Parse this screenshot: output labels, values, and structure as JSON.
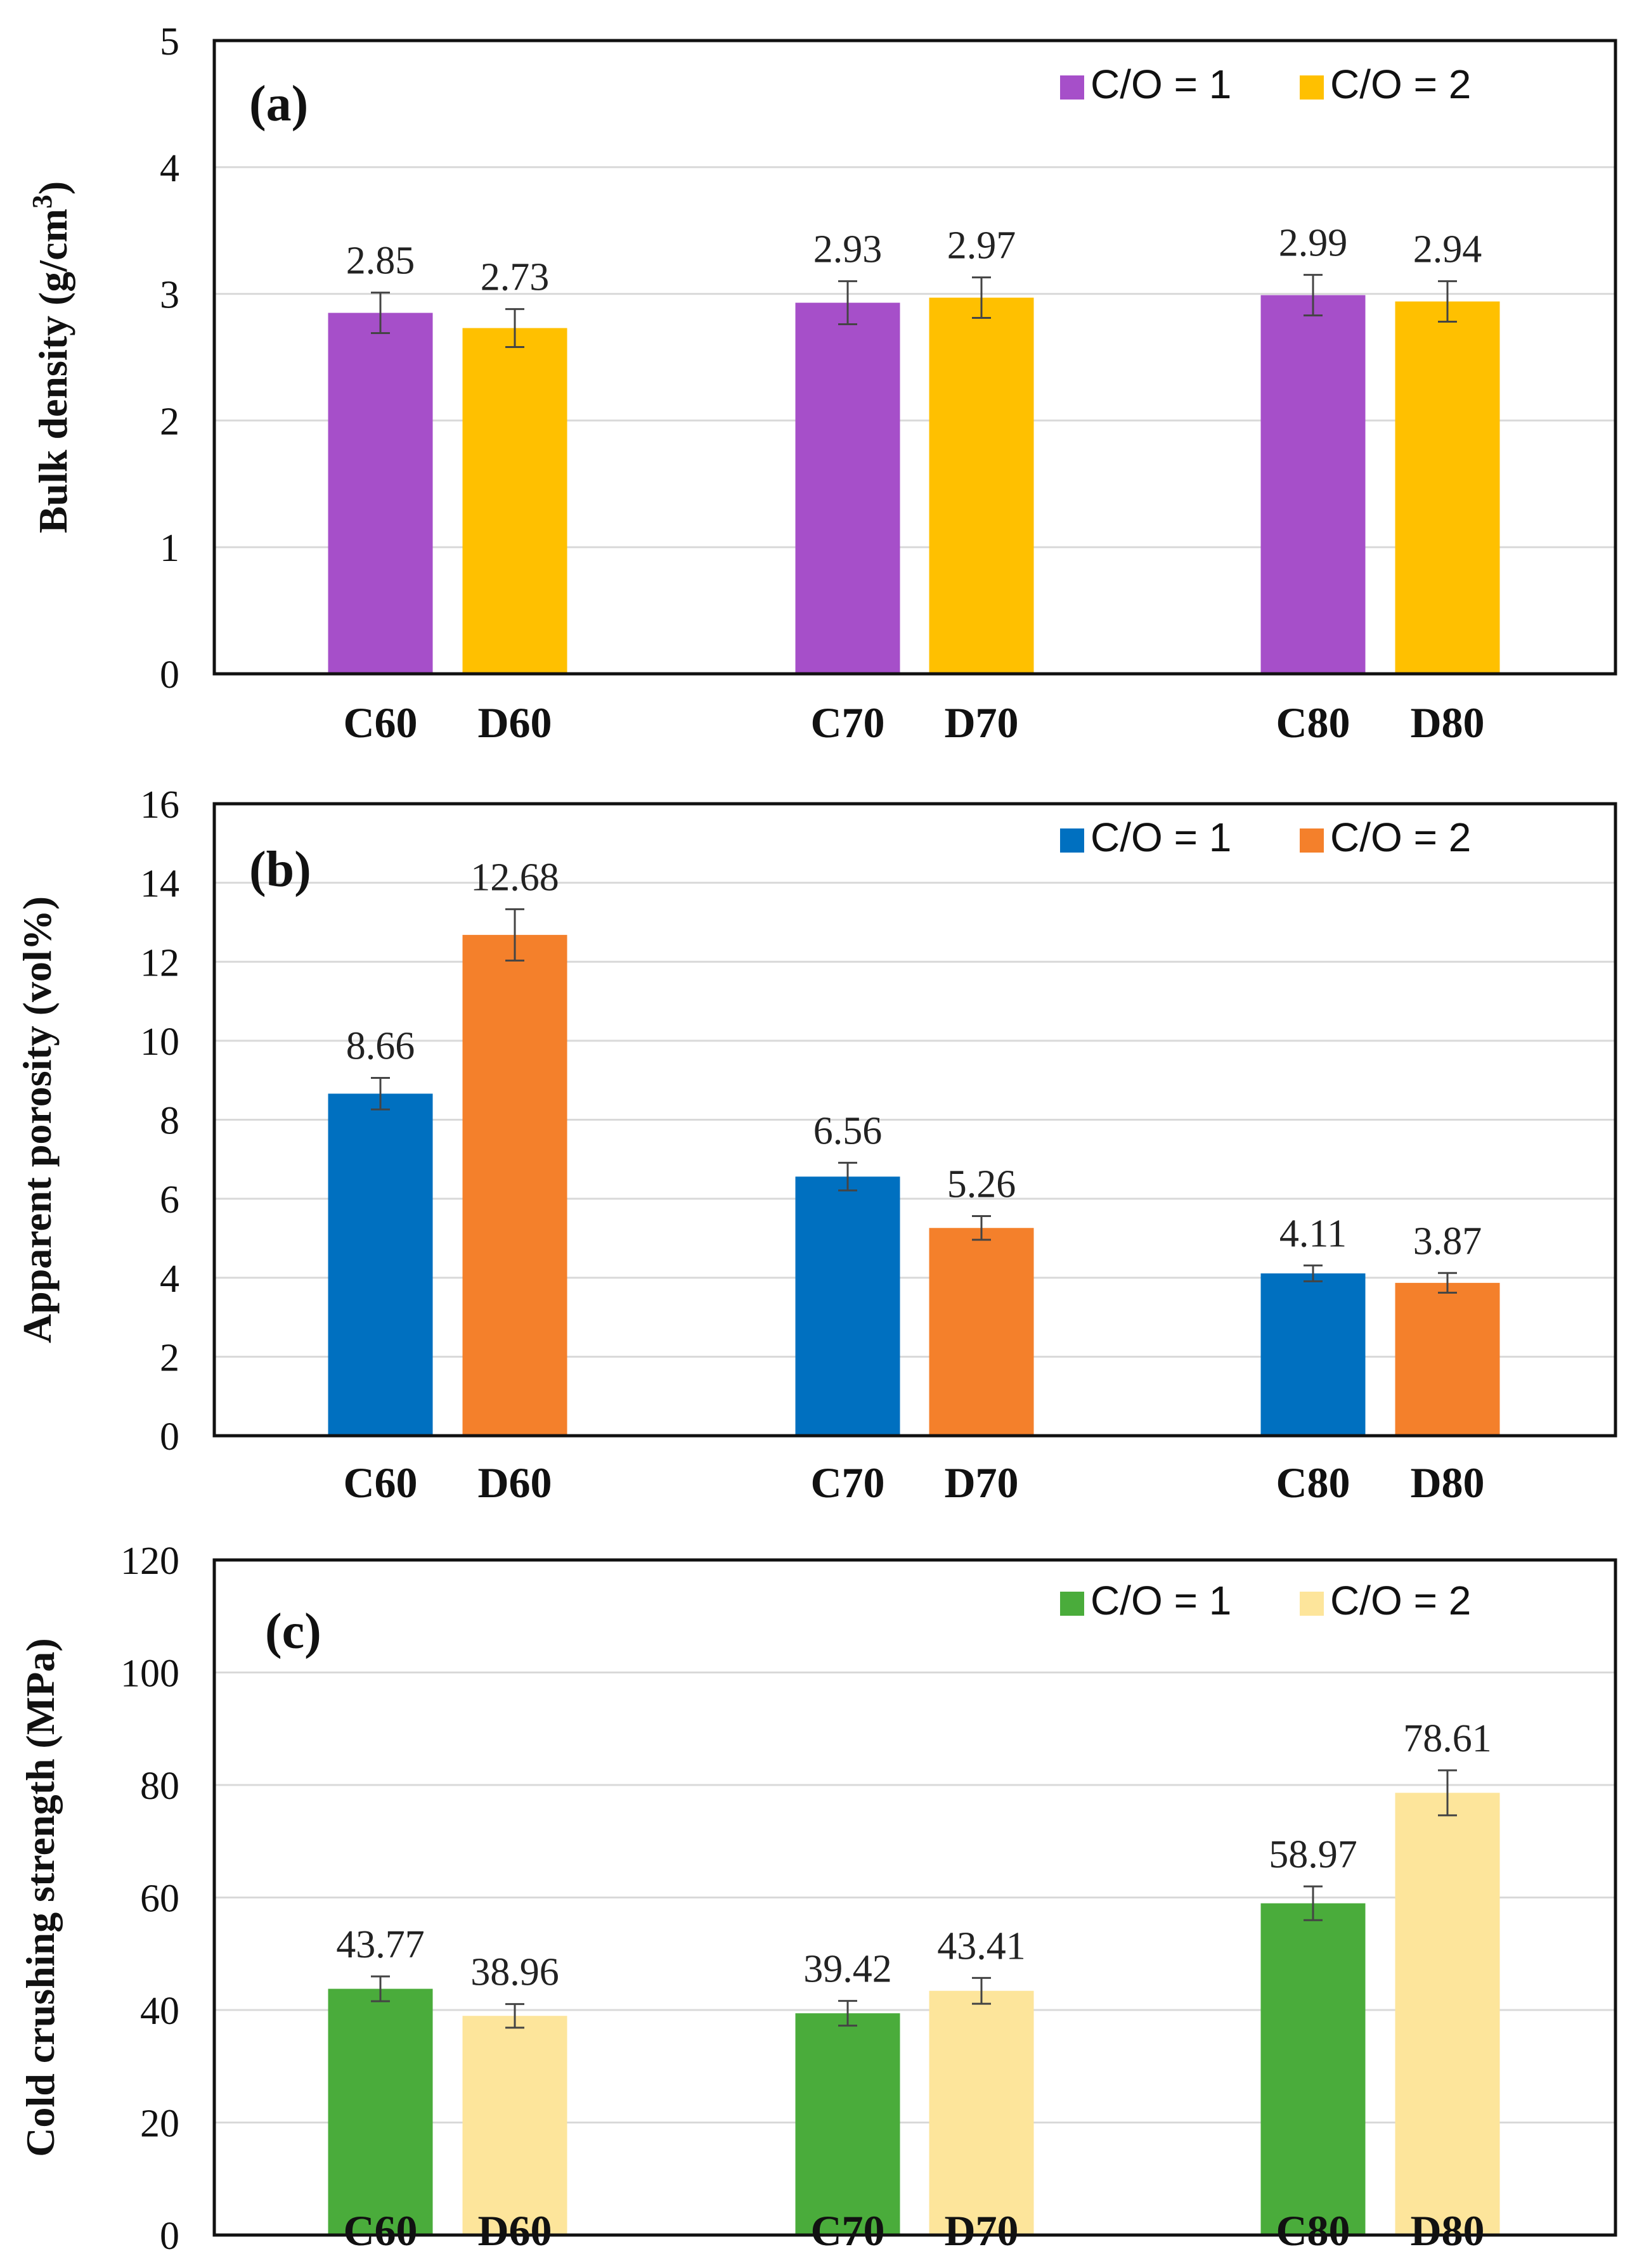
{
  "chart_data": [
    {
      "type": "bar",
      "panel": "(a)",
      "ylabel": "Bulk density (g/cm",
      "ylabel_sup": "3",
      "ylabel_close": ")",
      "ylim": [
        0,
        5
      ],
      "yticks": [
        0,
        1,
        2,
        3,
        4,
        5
      ],
      "categories": [
        "C60",
        "D60",
        "C70",
        "D70",
        "C80",
        "D80"
      ],
      "values": [
        2.85,
        2.73,
        2.93,
        2.97,
        2.99,
        2.94
      ],
      "value_labels": [
        "2.85",
        "2.73",
        "2.93",
        "2.97",
        "2.99",
        "2.94"
      ],
      "errors": [
        0.16,
        0.15,
        0.17,
        0.16,
        0.16,
        0.16
      ],
      "series_of_bar": [
        0,
        1,
        0,
        1,
        0,
        1
      ],
      "series": [
        {
          "name": "C/O = 1",
          "color": "#a64fc9"
        },
        {
          "name": "C/O = 2",
          "color": "#ffc000"
        }
      ],
      "grid": true,
      "legend": "top-right"
    },
    {
      "type": "bar",
      "panel": "(b)",
      "ylabel": "Apparent  porosity (vol%)",
      "ylim": [
        0,
        16
      ],
      "yticks": [
        0,
        2,
        4,
        6,
        8,
        10,
        12,
        14,
        16
      ],
      "categories": [
        "C60",
        "D60",
        "C70",
        "D70",
        "C80",
        "D80"
      ],
      "values": [
        8.66,
        12.68,
        6.56,
        5.26,
        4.11,
        3.87
      ],
      "value_labels": [
        "8.66",
        "12.68",
        "6.56",
        "5.26",
        "4.11",
        "3.87"
      ],
      "errors": [
        0.4,
        0.65,
        0.35,
        0.3,
        0.2,
        0.25
      ],
      "series_of_bar": [
        0,
        1,
        0,
        1,
        0,
        1
      ],
      "series": [
        {
          "name": "C/O = 1",
          "color": "#0070c0"
        },
        {
          "name": "C/O = 2",
          "color": "#f4802b"
        }
      ],
      "grid": true,
      "legend": "top-right"
    },
    {
      "type": "bar",
      "panel": "(c)",
      "ylabel": "Cold crushing strength (MPa)",
      "ylim": [
        0,
        120
      ],
      "yticks": [
        0,
        20,
        40,
        60,
        80,
        100,
        120
      ],
      "categories": [
        "C60",
        "D60",
        "C70",
        "D70",
        "C80",
        "D80"
      ],
      "values": [
        43.77,
        38.96,
        39.42,
        43.41,
        58.97,
        78.61
      ],
      "value_labels": [
        "43.77",
        "38.96",
        "39.42",
        "43.41",
        "58.97",
        "78.61"
      ],
      "errors": [
        2.2,
        2.1,
        2.2,
        2.3,
        3.0,
        4.0
      ],
      "series_of_bar": [
        0,
        1,
        0,
        1,
        0,
        1
      ],
      "series": [
        {
          "name": "C/O = 1",
          "color": "#4aac3b"
        },
        {
          "name": "C/O = 2",
          "color": "#fde59b"
        }
      ],
      "grid": true,
      "legend": "top-right"
    }
  ]
}
